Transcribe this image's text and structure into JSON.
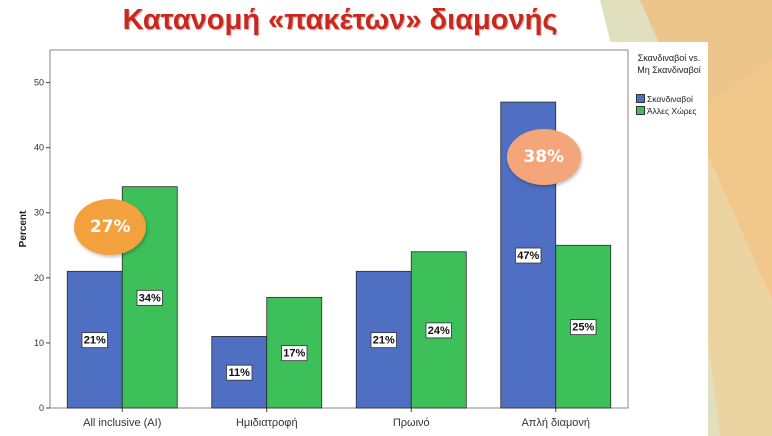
{
  "slide": {
    "title": "Κατανομή «πακέτων» διαμονής",
    "colors": {
      "title": "#c8281e",
      "decor_orange": "#f2b36b",
      "decor_green": "#c9cc9a"
    }
  },
  "chart_data": {
    "type": "bar",
    "title": "",
    "xlabel": "",
    "ylabel": "Percent",
    "ylim": [
      0,
      55
    ],
    "yticks": [
      0,
      10,
      20,
      30,
      40,
      50
    ],
    "categories": [
      "All inclusive (AI)",
      "Ημιδιατροφή",
      "Πρωινό",
      "Απλή διαμονή"
    ],
    "legend": {
      "title": "Σκανδιναβοί vs. Μη Σκανδιναβοί",
      "position": "right"
    },
    "series": [
      {
        "name": "Σκανδιναβοί",
        "color": "#4f6fc2",
        "values": [
          21,
          11,
          21,
          47
        ],
        "labels": [
          "21%",
          "11%",
          "21%",
          "47%"
        ]
      },
      {
        "name": "Άλλες Χώρες",
        "color": "#3dbf5a",
        "values": [
          34,
          17,
          24,
          25
        ],
        "labels": [
          "34%",
          "17%",
          "24%",
          "25%"
        ]
      }
    ],
    "annotations": [
      {
        "text": "27%",
        "category": "All inclusive (AI)",
        "color": "#f3a13c"
      },
      {
        "text": "38%",
        "category": "Απλή διαμονή",
        "color": "#f5a57a"
      }
    ],
    "grid": false
  }
}
